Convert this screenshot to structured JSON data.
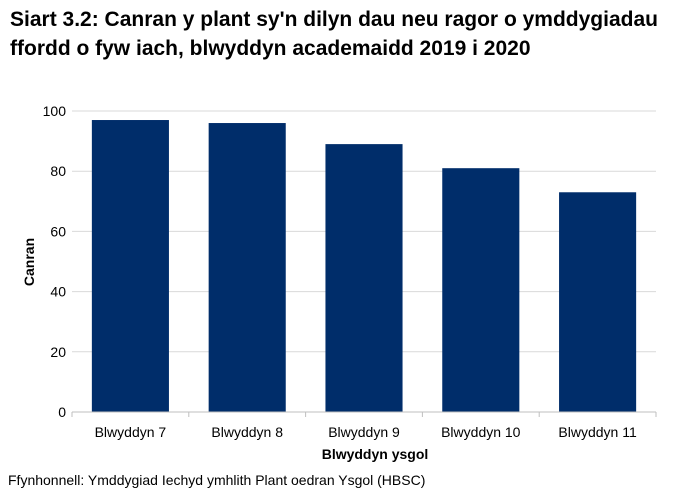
{
  "chart_data": {
    "type": "bar",
    "title": "Siart 3.2: Canran y plant sy'n dilyn dau neu ragor o ymddygiadau ffordd o fyw iach, blwyddyn academaidd 2019 i 2020",
    "categories": [
      "Blwyddyn 7",
      "Blwyddyn 8",
      "Blwyddyn 9",
      "Blwyddyn 10",
      "Blwyddyn 11"
    ],
    "values": [
      97,
      96,
      89,
      81,
      73
    ],
    "xlabel": "Blwyddyn ysgol",
    "ylabel": "Canran",
    "ylim": [
      0,
      100
    ],
    "yticks": [
      0,
      20,
      40,
      60,
      80,
      100
    ],
    "grid": true,
    "bar_color": "#002d6a",
    "grid_color": "#d9d9d9"
  },
  "source": "Ffynhonnell: Ymddygiad Iechyd ymhlith Plant oedran Ysgol (HBSC)"
}
